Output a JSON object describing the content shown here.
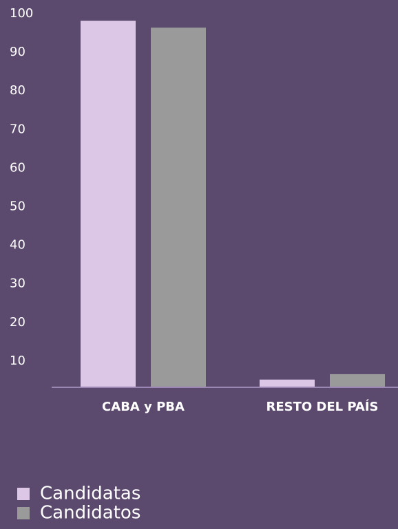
{
  "chart_data": {
    "type": "bar",
    "categories": [
      "CABA y PBA",
      "RESTO DEL PAÍS"
    ],
    "series": [
      {
        "name": "Candidatas",
        "color": "#dcc8e6",
        "values": [
          98.2,
          5.2
        ]
      },
      {
        "name": "Candidatos",
        "color": "#9a9a9a",
        "values": [
          96.4,
          6.6
        ]
      }
    ],
    "ylim": [
      3.2,
      100
    ],
    "yticks": [
      10,
      20,
      30,
      40,
      50,
      60,
      70,
      80,
      90,
      100
    ],
    "grid": false,
    "legend": "bottom-left"
  }
}
